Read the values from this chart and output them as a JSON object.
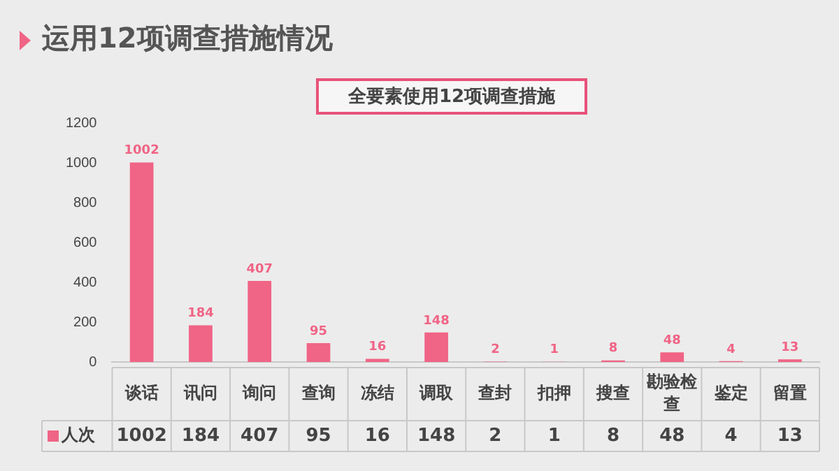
{
  "chart_data": {
    "type": "bar",
    "title": "运用12项调查措施情况",
    "subtitle": "全要素使用12项调查措施",
    "categories": [
      "谈话",
      "讯问",
      "询问",
      "查询",
      "冻结",
      "调取",
      "查封",
      "扣押",
      "搜查",
      "勘验检查",
      "鉴定",
      "留置"
    ],
    "series": [
      {
        "name": "人次",
        "color": "#f06485",
        "values": [
          1002,
          184,
          407,
          95,
          16,
          148,
          2,
          1,
          8,
          48,
          4,
          13
        ],
        "value_labels": [
          "1002",
          "184",
          "407",
          "95",
          "16",
          "148",
          "2",
          "1",
          "8",
          "48",
          "4",
          "13"
        ]
      }
    ],
    "ylim": [
      0,
      1200
    ],
    "yticks": [
      0,
      200,
      400,
      600,
      800,
      1000,
      1200
    ],
    "grid": false,
    "legend": "bottom",
    "data_labels": true
  }
}
